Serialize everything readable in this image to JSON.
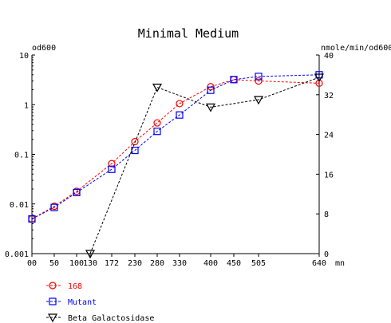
{
  "chart_data": {
    "type": "line",
    "title": "Minimal Medium",
    "ylabel_left": "od600",
    "ylabel_right": "nmole/min/od600",
    "x_unit": "mn",
    "x_ticks": [
      0,
      50,
      100,
      130,
      172,
      230,
      280,
      330,
      400,
      450,
      505,
      640
    ],
    "x_tick_labels": [
      "00",
      "50",
      "100",
      "130",
      "172",
      "230",
      "280",
      "330",
      "400",
      "450",
      "505",
      "640"
    ],
    "y_left_scale": "log",
    "y_left_ticks": [
      0.001,
      0.01,
      0.1,
      1,
      10
    ],
    "y_left_tick_labels": [
      "0.001",
      "0.01",
      "0.1",
      "1",
      "10"
    ],
    "y_right_ticks": [
      0,
      8,
      16,
      24,
      32,
      40
    ],
    "y_right_tick_labels": [
      "0",
      "8",
      "16",
      "24",
      "32",
      "40"
    ],
    "ylim_left": [
      0.001,
      10
    ],
    "ylim_right": [
      0,
      40
    ],
    "series": [
      {
        "name": "168",
        "axis": "left",
        "marker": "circle",
        "color": "#ff0000",
        "x": [
          0,
          50,
          100,
          172,
          230,
          280,
          330,
          400,
          450,
          505,
          640
        ],
        "y": [
          0.005,
          0.009,
          0.018,
          0.065,
          0.18,
          0.43,
          1.05,
          2.3,
          3.2,
          3.0,
          2.7
        ]
      },
      {
        "name": "Mutant",
        "axis": "left",
        "marker": "square",
        "color": "#0000ff",
        "x": [
          0,
          50,
          100,
          172,
          230,
          280,
          330,
          400,
          450,
          505,
          640
        ],
        "y": [
          0.005,
          0.0085,
          0.017,
          0.05,
          0.12,
          0.29,
          0.62,
          1.95,
          3.2,
          3.7,
          4.0
        ]
      },
      {
        "name": "Beta Galactosidase",
        "axis": "right",
        "marker": "triangle-down",
        "color": "#000000",
        "x": [
          130,
          280,
          400,
          505,
          640
        ],
        "y": [
          0,
          33.5,
          29.5,
          31,
          35.5
        ]
      }
    ],
    "legend_position": "bottom-left"
  }
}
